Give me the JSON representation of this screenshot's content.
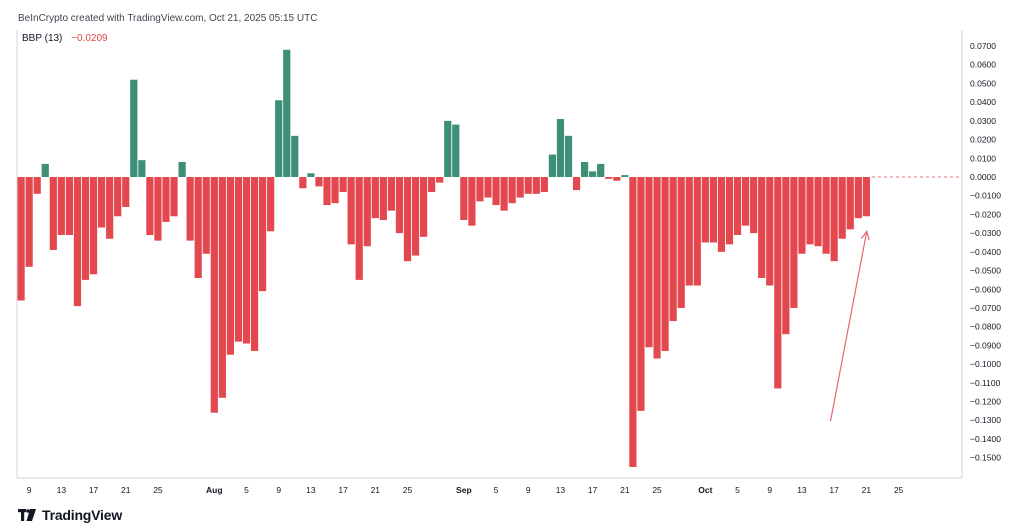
{
  "header": {
    "attribution": "BeInCrypto created with TradingView.com, Oct 21, 2025 05:15 UTC"
  },
  "indicator": {
    "name": "BBP (13)",
    "value": "−0.0209",
    "value_color": "#e0484c"
  },
  "brand": {
    "logo_icon": "tradingview-logo-icon",
    "text": "TradingView"
  },
  "colors": {
    "positive": "#3d8f78",
    "negative": "#e3484e",
    "zero_line": "#e3484e",
    "axis": "#d1d4dc",
    "arrow": "#e06a6e"
  },
  "chart_data": {
    "type": "bar",
    "title": "",
    "xlabel": "",
    "ylabel": "",
    "ylim": [
      -0.158,
      0.074
    ],
    "grid": false,
    "yticks": [
      "0.0700",
      "0.0600",
      "0.0500",
      "0.0400",
      "0.0300",
      "0.0200",
      "0.0100",
      "0.0000",
      "−0.0100",
      "−0.0200",
      "−0.0300",
      "−0.0400",
      "−0.0500",
      "−0.0600",
      "−0.0700",
      "−0.0800",
      "−0.0900",
      "−0.1000",
      "−0.1100",
      "−0.1200",
      "−0.1300",
      "−0.1400",
      "−0.1500"
    ],
    "ytick_values": [
      0.07,
      0.06,
      0.05,
      0.04,
      0.03,
      0.02,
      0.01,
      0,
      -0.01,
      -0.02,
      -0.03,
      -0.04,
      -0.05,
      -0.06,
      -0.07,
      -0.08,
      -0.09,
      -0.1,
      -0.11,
      -0.12,
      -0.13,
      -0.14,
      -0.15
    ],
    "xticks": [
      {
        "label": "9",
        "index": 1,
        "month": false
      },
      {
        "label": "13",
        "index": 5,
        "month": false
      },
      {
        "label": "17",
        "index": 9,
        "month": false
      },
      {
        "label": "21",
        "index": 13,
        "month": false
      },
      {
        "label": "25",
        "index": 17,
        "month": false
      },
      {
        "label": "Aug",
        "index": 24,
        "month": true
      },
      {
        "label": "5",
        "index": 28,
        "month": false
      },
      {
        "label": "9",
        "index": 32,
        "month": false
      },
      {
        "label": "13",
        "index": 36,
        "month": false
      },
      {
        "label": "17",
        "index": 40,
        "month": false
      },
      {
        "label": "21",
        "index": 44,
        "month": false
      },
      {
        "label": "25",
        "index": 48,
        "month": false
      },
      {
        "label": "Sep",
        "index": 55,
        "month": true
      },
      {
        "label": "5",
        "index": 59,
        "month": false
      },
      {
        "label": "9",
        "index": 63,
        "month": false
      },
      {
        "label": "13",
        "index": 67,
        "month": false
      },
      {
        "label": "17",
        "index": 71,
        "month": false
      },
      {
        "label": "21",
        "index": 75,
        "month": false
      },
      {
        "label": "25",
        "index": 79,
        "month": false
      },
      {
        "label": "Oct",
        "index": 85,
        "month": true
      },
      {
        "label": "5",
        "index": 89,
        "month": false
      },
      {
        "label": "9",
        "index": 93,
        "month": false
      },
      {
        "label": "13",
        "index": 97,
        "month": false
      },
      {
        "label": "17",
        "index": 101,
        "month": false
      },
      {
        "label": "21",
        "index": 105,
        "month": false
      },
      {
        "label": "25",
        "index": 109,
        "month": false
      }
    ],
    "values": [
      -0.066,
      -0.048,
      -0.009,
      0.007,
      -0.039,
      -0.031,
      -0.031,
      -0.069,
      -0.055,
      -0.052,
      -0.027,
      -0.033,
      -0.021,
      -0.016,
      0.052,
      0.009,
      -0.031,
      -0.034,
      -0.024,
      -0.021,
      0.008,
      -0.034,
      -0.054,
      -0.041,
      -0.126,
      -0.118,
      -0.095,
      -0.088,
      -0.089,
      -0.093,
      -0.061,
      -0.029,
      0.041,
      0.068,
      0.022,
      -0.006,
      0.002,
      -0.005,
      -0.015,
      -0.014,
      -0.008,
      -0.036,
      -0.055,
      -0.037,
      -0.022,
      -0.023,
      -0.018,
      -0.03,
      -0.045,
      -0.042,
      -0.032,
      -0.008,
      -0.003,
      0.03,
      0.028,
      -0.023,
      -0.026,
      -0.013,
      -0.011,
      -0.015,
      -0.018,
      -0.014,
      -0.011,
      -0.009,
      -0.009,
      -0.008,
      0.012,
      0.031,
      0.022,
      -0.007,
      0.008,
      0.003,
      0.007,
      -0.001,
      -0.002,
      0.001,
      -0.155,
      -0.125,
      -0.091,
      -0.097,
      -0.093,
      -0.077,
      -0.07,
      -0.058,
      -0.058,
      -0.035,
      -0.035,
      -0.04,
      -0.036,
      -0.031,
      -0.026,
      -0.03,
      -0.054,
      -0.058,
      -0.113,
      -0.084,
      -0.07,
      -0.041,
      -0.036,
      -0.037,
      -0.041,
      -0.045,
      -0.033,
      -0.028,
      -0.022,
      -0.021
    ],
    "annotations": [
      {
        "type": "arrow",
        "from": {
          "index": 100,
          "value": -0.13
        },
        "to": {
          "index": 105,
          "value": -0.028
        }
      }
    ]
  }
}
